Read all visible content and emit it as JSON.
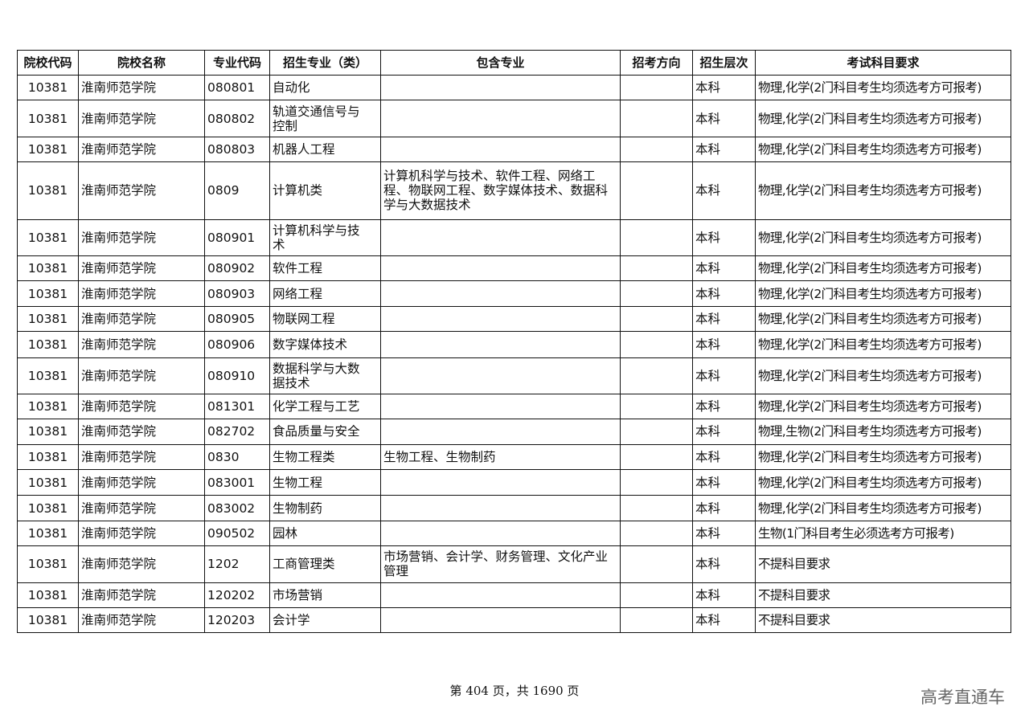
{
  "table": {
    "headers": [
      "院校代码",
      "院校名称",
      "专业代码",
      "招生专业（类）",
      "包含专业",
      "招考方向",
      "招生层次",
      "考试科目要求"
    ],
    "rows": [
      [
        "10381",
        "淮南师范学院",
        "080801",
        "自动化",
        "",
        "",
        "本科",
        "物理,化学(2门科目考生均须选考方可报考)"
      ],
      [
        "10381",
        "淮南师范学院",
        "080802",
        "轨道交通信号与控制",
        "",
        "",
        "本科",
        "物理,化学(2门科目考生均须选考方可报考)"
      ],
      [
        "10381",
        "淮南师范学院",
        "080803",
        "机器人工程",
        "",
        "",
        "本科",
        "物理,化学(2门科目考生均须选考方可报考)"
      ],
      [
        "10381",
        "淮南师范学院",
        "0809",
        "计算机类",
        "计算机科学与技术、软件工程、网络工程、物联网工程、数字媒体技术、数据科学与大数据技术",
        "",
        "本科",
        "物理,化学(2门科目考生均须选考方可报考)"
      ],
      [
        "10381",
        "淮南师范学院",
        "080901",
        "计算机科学与技术",
        "",
        "",
        "本科",
        "物理,化学(2门科目考生均须选考方可报考)"
      ],
      [
        "10381",
        "淮南师范学院",
        "080902",
        "软件工程",
        "",
        "",
        "本科",
        "物理,化学(2门科目考生均须选考方可报考)"
      ],
      [
        "10381",
        "淮南师范学院",
        "080903",
        "网络工程",
        "",
        "",
        "本科",
        "物理,化学(2门科目考生均须选考方可报考)"
      ],
      [
        "10381",
        "淮南师范学院",
        "080905",
        "物联网工程",
        "",
        "",
        "本科",
        "物理,化学(2门科目考生均须选考方可报考)"
      ],
      [
        "10381",
        "淮南师范学院",
        "080906",
        "数字媒体技术",
        "",
        "",
        "本科",
        "物理,化学(2门科目考生均须选考方可报考)"
      ],
      [
        "10381",
        "淮南师范学院",
        "080910",
        "数据科学与大数据技术",
        "",
        "",
        "本科",
        "物理,化学(2门科目考生均须选考方可报考)"
      ],
      [
        "10381",
        "淮南师范学院",
        "081301",
        "化学工程与工艺",
        "",
        "",
        "本科",
        "物理,化学(2门科目考生均须选考方可报考)"
      ],
      [
        "10381",
        "淮南师范学院",
        "082702",
        "食品质量与安全",
        "",
        "",
        "本科",
        "物理,生物(2门科目考生均须选考方可报考)"
      ],
      [
        "10381",
        "淮南师范学院",
        "0830",
        "生物工程类",
        "生物工程、生物制药",
        "",
        "本科",
        "物理,化学(2门科目考生均须选考方可报考)"
      ],
      [
        "10381",
        "淮南师范学院",
        "083001",
        "生物工程",
        "",
        "",
        "本科",
        "物理,化学(2门科目考生均须选考方可报考)"
      ],
      [
        "10381",
        "淮南师范学院",
        "083002",
        "生物制药",
        "",
        "",
        "本科",
        "物理,化学(2门科目考生均须选考方可报考)"
      ],
      [
        "10381",
        "淮南师范学院",
        "090502",
        "园林",
        "",
        "",
        "本科",
        "生物(1门科目考生必须选考方可报考)"
      ],
      [
        "10381",
        "淮南师范学院",
        "1202",
        "工商管理类",
        "市场营销、会计学、财务管理、文化产业管理",
        "",
        "本科",
        "不提科目要求"
      ],
      [
        "10381",
        "淮南师范学院",
        "120202",
        "市场营销",
        "",
        "",
        "本科",
        "不提科目要求"
      ],
      [
        "10381",
        "淮南师范学院",
        "120203",
        "会计学",
        "",
        "",
        "本科",
        "不提科目要求"
      ]
    ]
  },
  "footer": {
    "page_info": "第 404 页，共 1690 页",
    "watermark": "高考直通车"
  }
}
